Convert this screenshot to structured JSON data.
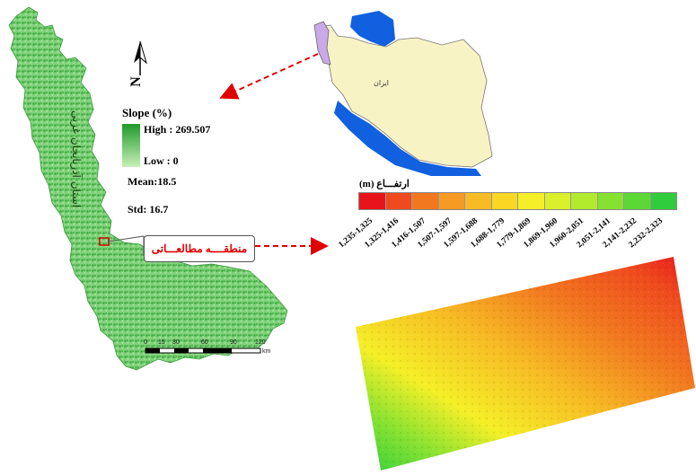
{
  "slope_legend": {
    "title": "Slope (%)",
    "high": "High : 269.507",
    "low": "Low : 0",
    "mean": "Mean:18.5",
    "std": "Std: 16.7",
    "ramp_colors": [
      "#1f9a2a",
      "#c8f0b8"
    ]
  },
  "province_label": "استان آذربایجان غربی",
  "study_area_label": "منطقــــه مطالعـــاتی",
  "iran_label": "ایران",
  "north_arrow": {
    "letter": "N",
    "icon": "north-arrow-icon"
  },
  "scale_bar": {
    "ticks": [
      "0",
      "15",
      "30",
      "60",
      "90",
      "120"
    ],
    "unit": "km"
  },
  "elevation_legend": {
    "title": "ارتفـــاع (m)",
    "classes": [
      {
        "label": "1,235-1,325",
        "color": "#e8141a"
      },
      {
        "label": "1,325-1,416",
        "color": "#ef4a1d"
      },
      {
        "label": "1,416-1,507",
        "color": "#f2781f"
      },
      {
        "label": "1,507-1,597",
        "color": "#f59a22"
      },
      {
        "label": "1,597-1,688",
        "color": "#f7bb24"
      },
      {
        "label": "1,688-1,779",
        "color": "#f9d825"
      },
      {
        "label": "1,779-1,869",
        "color": "#f5ef27"
      },
      {
        "label": "1,869-1,960",
        "color": "#d9f02a"
      },
      {
        "label": "1,960-2,051",
        "color": "#b2eb2e"
      },
      {
        "label": "2,051-2,141",
        "color": "#86e231"
      },
      {
        "label": "2,141-2,232",
        "color": "#5cd836"
      },
      {
        "label": "2,232-2,323",
        "color": "#2fcd3b"
      }
    ]
  },
  "colors": {
    "arrow": "#e00000",
    "iran_land": "#f8f3c4",
    "water": "#1060e0",
    "province_highlight": "#c9a9e8"
  }
}
